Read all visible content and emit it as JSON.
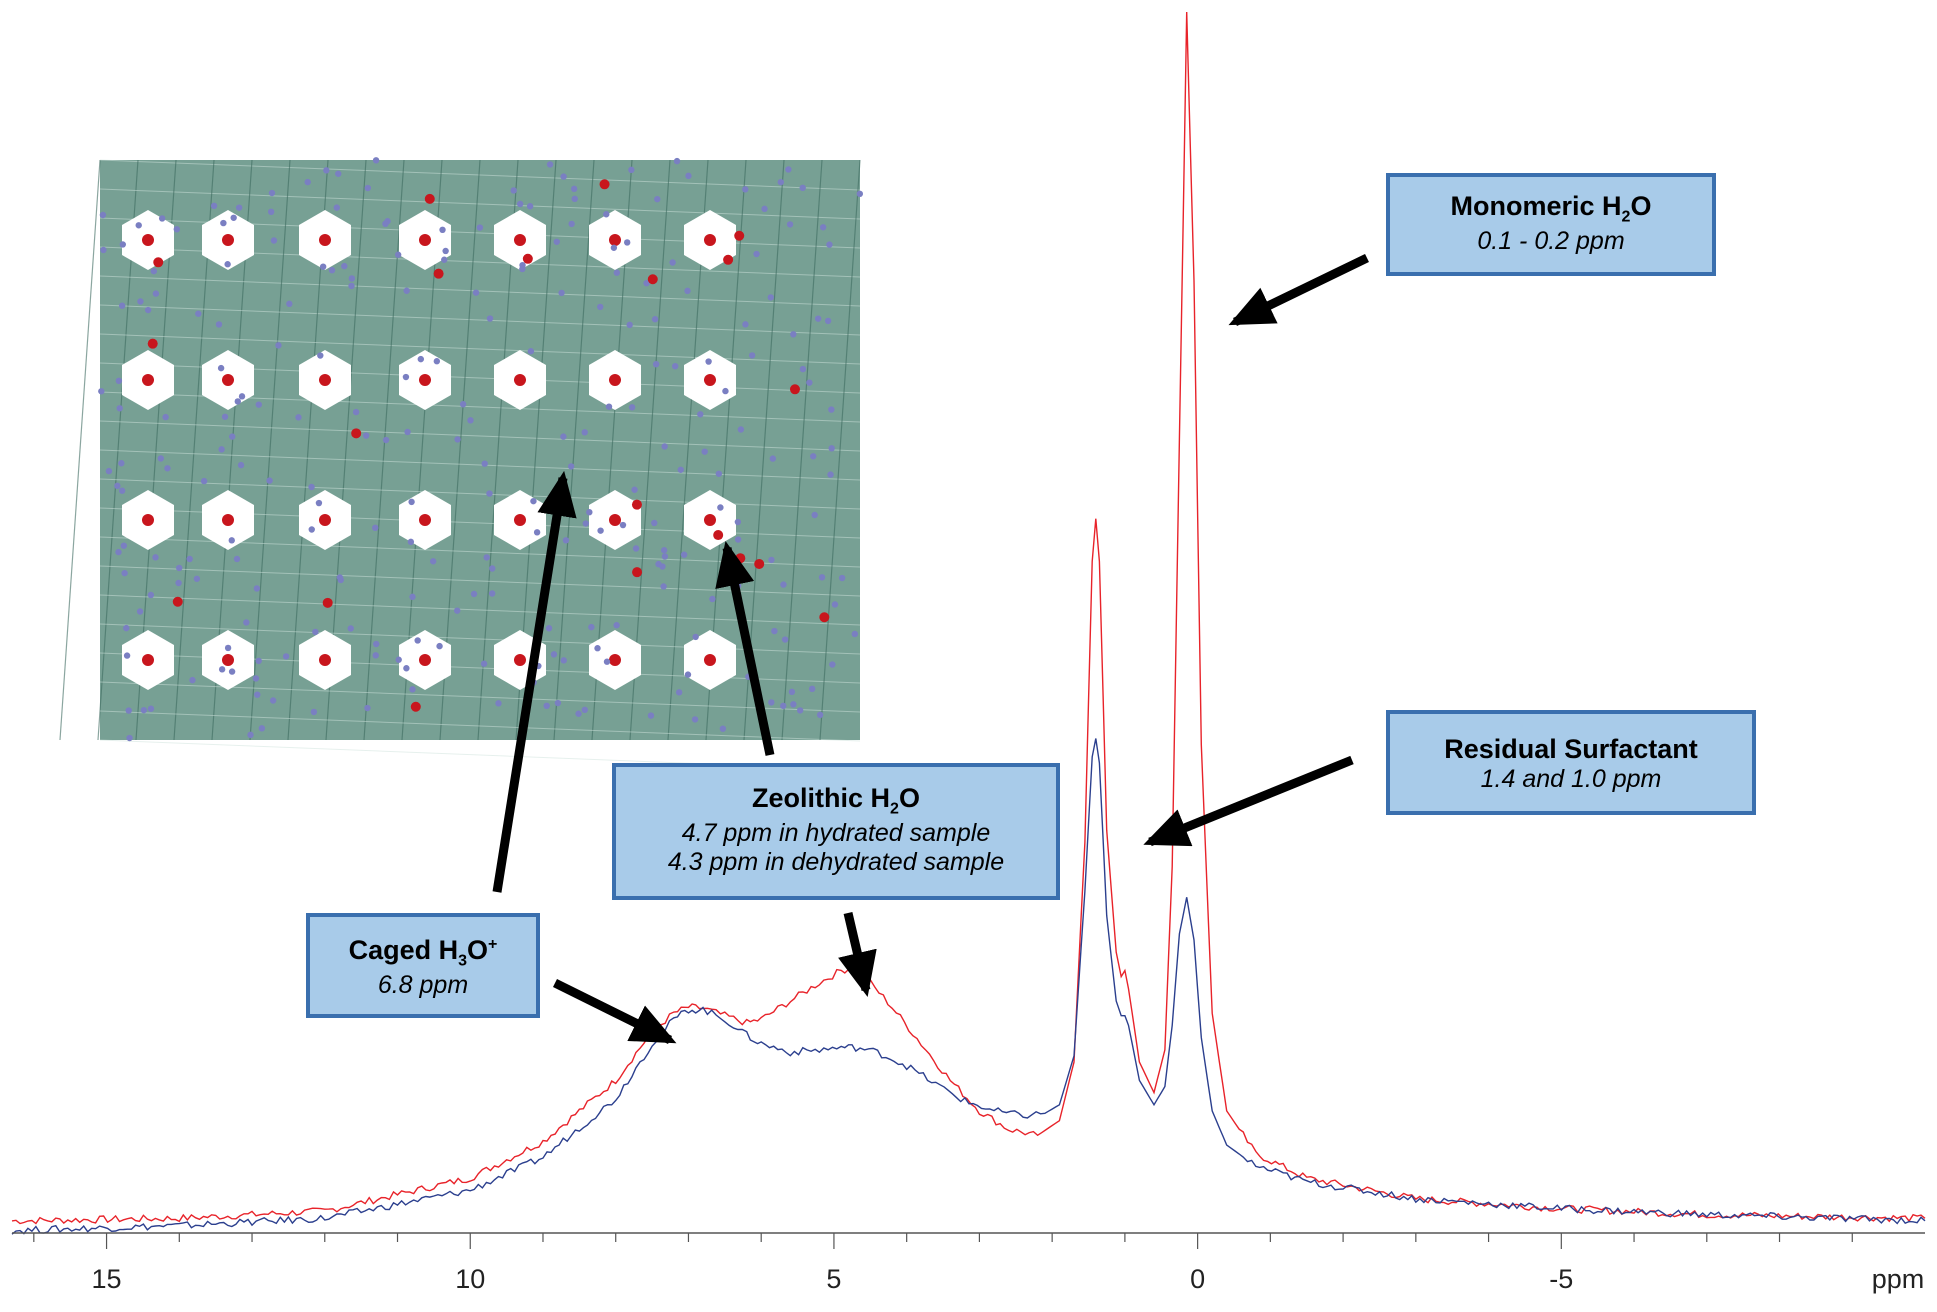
{
  "chart_data": {
    "type": "line",
    "title": "",
    "xlabel": "",
    "ylabel": "",
    "x_unit": "ppm",
    "x_reversed": true,
    "xlim": [
      16.3,
      -10.0
    ],
    "ylim": [
      0,
      1.0
    ],
    "xticks": [
      15,
      10,
      5,
      0,
      -5
    ],
    "xtick_labels": [
      "15",
      "10",
      "5",
      "0",
      "-5"
    ],
    "grid": false,
    "legend": "none",
    "series": [
      {
        "color": "#e8232a",
        "points": [
          [
            16.3,
            0.01
          ],
          [
            14,
            0.012
          ],
          [
            12,
            0.018
          ],
          [
            10,
            0.045
          ],
          [
            9,
            0.075
          ],
          [
            8,
            0.125
          ],
          [
            7.5,
            0.165
          ],
          [
            7.2,
            0.18
          ],
          [
            7.0,
            0.185
          ],
          [
            6.8,
            0.184
          ],
          [
            6.5,
            0.178
          ],
          [
            6.2,
            0.172
          ],
          [
            6.0,
            0.175
          ],
          [
            5.6,
            0.19
          ],
          [
            5.2,
            0.205
          ],
          [
            4.9,
            0.215
          ],
          [
            4.7,
            0.218
          ],
          [
            4.5,
            0.205
          ],
          [
            4.2,
            0.185
          ],
          [
            3.8,
            0.155
          ],
          [
            3.4,
            0.125
          ],
          [
            3.0,
            0.1
          ],
          [
            2.6,
            0.085
          ],
          [
            2.2,
            0.08
          ],
          [
            1.9,
            0.092
          ],
          [
            1.7,
            0.14
          ],
          [
            1.55,
            0.32
          ],
          [
            1.45,
            0.55
          ],
          [
            1.4,
            0.585
          ],
          [
            1.35,
            0.55
          ],
          [
            1.25,
            0.33
          ],
          [
            1.12,
            0.23
          ],
          [
            1.05,
            0.21
          ],
          [
            1.0,
            0.215
          ],
          [
            0.95,
            0.2
          ],
          [
            0.8,
            0.14
          ],
          [
            0.6,
            0.115
          ],
          [
            0.45,
            0.15
          ],
          [
            0.35,
            0.3
          ],
          [
            0.25,
            0.65
          ],
          [
            0.15,
            1.0
          ],
          [
            0.05,
            0.78
          ],
          [
            -0.05,
            0.4
          ],
          [
            -0.2,
            0.18
          ],
          [
            -0.4,
            0.1
          ],
          [
            -0.8,
            0.065
          ],
          [
            -1.5,
            0.045
          ],
          [
            -3,
            0.028
          ],
          [
            -5,
            0.02
          ],
          [
            -7,
            0.015
          ],
          [
            -10,
            0.012
          ]
        ]
      },
      {
        "color": "#2b3f8e",
        "points": [
          [
            16.3,
            0.002
          ],
          [
            14,
            0.006
          ],
          [
            12,
            0.012
          ],
          [
            10,
            0.035
          ],
          [
            9,
            0.062
          ],
          [
            8,
            0.11
          ],
          [
            7.5,
            0.155
          ],
          [
            7.2,
            0.175
          ],
          [
            7.0,
            0.183
          ],
          [
            6.8,
            0.183
          ],
          [
            6.5,
            0.175
          ],
          [
            6.2,
            0.162
          ],
          [
            6.0,
            0.155
          ],
          [
            5.6,
            0.148
          ],
          [
            5.2,
            0.15
          ],
          [
            4.9,
            0.152
          ],
          [
            4.7,
            0.152
          ],
          [
            4.4,
            0.148
          ],
          [
            4.0,
            0.137
          ],
          [
            3.6,
            0.122
          ],
          [
            3.2,
            0.108
          ],
          [
            2.8,
            0.1
          ],
          [
            2.4,
            0.096
          ],
          [
            2.1,
            0.098
          ],
          [
            1.9,
            0.105
          ],
          [
            1.7,
            0.145
          ],
          [
            1.55,
            0.28
          ],
          [
            1.45,
            0.39
          ],
          [
            1.4,
            0.405
          ],
          [
            1.35,
            0.385
          ],
          [
            1.25,
            0.26
          ],
          [
            1.12,
            0.19
          ],
          [
            1.05,
            0.178
          ],
          [
            1.0,
            0.178
          ],
          [
            0.95,
            0.17
          ],
          [
            0.8,
            0.125
          ],
          [
            0.6,
            0.105
          ],
          [
            0.45,
            0.12
          ],
          [
            0.35,
            0.17
          ],
          [
            0.25,
            0.245
          ],
          [
            0.15,
            0.275
          ],
          [
            0.05,
            0.24
          ],
          [
            -0.05,
            0.16
          ],
          [
            -0.2,
            0.1
          ],
          [
            -0.4,
            0.072
          ],
          [
            -0.8,
            0.055
          ],
          [
            -1.5,
            0.042
          ],
          [
            -3,
            0.028
          ],
          [
            -5,
            0.02
          ],
          [
            -7,
            0.015
          ],
          [
            -10,
            0.01
          ]
        ]
      }
    ],
    "annotations": [
      {
        "key": "monomeric",
        "title_main": "Monomeric H",
        "title_sub": "2",
        "title_sup": "",
        "title_tail": "O",
        "lines": [
          "0.1 - 0.2 ppm"
        ]
      },
      {
        "key": "surfactant",
        "title_main": "Residual Surfactant",
        "title_sub": "",
        "title_sup": "",
        "title_tail": "",
        "lines": [
          "1.4 and 1.0 ppm"
        ]
      },
      {
        "key": "zeolithic",
        "title_main": "Zeolithic H",
        "title_sub": "2",
        "title_sup": "",
        "title_tail": "O",
        "lines": [
          "4.7 ppm in hydrated sample",
          "4.3 ppm in dehydrated sample"
        ]
      },
      {
        "key": "caged",
        "title_main": "Caged H",
        "title_sub": "3",
        "title_sup": "+",
        "title_tail": "O",
        "lines": [
          "6.8 ppm"
        ]
      }
    ]
  },
  "inset_image": {
    "depiction": "crystal-structure",
    "polyhedra_color": "#5f8f81",
    "oxygen_color": "#c8161d",
    "atom_color": "#7a7fc2"
  }
}
